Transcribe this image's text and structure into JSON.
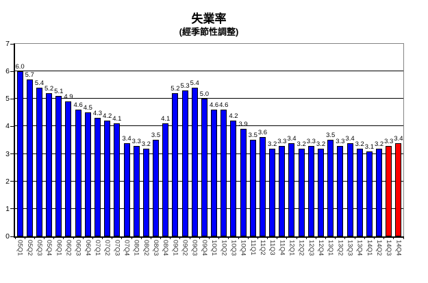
{
  "chart_data": {
    "type": "bar",
    "title": "失業率",
    "subtitle": "(經季節性調整)",
    "xlabel": "",
    "ylabel": "",
    "ylim": [
      0,
      7
    ],
    "yticks": [
      0,
      1,
      2,
      3,
      4,
      5,
      6,
      7
    ],
    "grid": true,
    "legend": "none",
    "value_labels": true,
    "value_label_decimals": 1,
    "bar_color": "#0000FF",
    "highlight_color": "#FF0000",
    "bar_border_color": "#000000",
    "highlight_indices": [
      38,
      39
    ],
    "categories": [
      "05Q1",
      "05Q2",
      "05Q3",
      "05Q4",
      "06Q1",
      "06Q2",
      "06Q3",
      "06Q4",
      "07Q1",
      "07Q2",
      "07Q3",
      "07Q4",
      "08Q1",
      "08Q2",
      "08Q3",
      "08Q4",
      "09Q1",
      "09Q2",
      "09Q3",
      "09Q4",
      "10Q1",
      "10Q2",
      "10Q3",
      "10Q4",
      "11Q1",
      "11Q2",
      "11Q3",
      "11Q4",
      "12Q1",
      "12Q2",
      "12Q3",
      "12Q4",
      "13Q1",
      "13Q2",
      "13Q3",
      "13Q4",
      "14Q1",
      "14Q2",
      "14Q3",
      "14Q4"
    ],
    "values": [
      6.0,
      5.7,
      5.4,
      5.2,
      5.1,
      4.9,
      4.6,
      4.5,
      4.3,
      4.2,
      4.1,
      3.4,
      3.3,
      3.2,
      3.5,
      4.1,
      5.2,
      5.3,
      5.4,
      5.0,
      4.6,
      4.6,
      4.2,
      3.9,
      3.5,
      3.6,
      3.2,
      3.3,
      3.4,
      3.2,
      3.3,
      3.2,
      3.5,
      3.3,
      3.4,
      3.2,
      3.1,
      3.2,
      3.3,
      3.4
    ]
  },
  "colors": {
    "gridline": "#000000",
    "plot_border": "#848484",
    "axis": "#000000",
    "category_label": "#333333",
    "value_label": "#000000"
  }
}
